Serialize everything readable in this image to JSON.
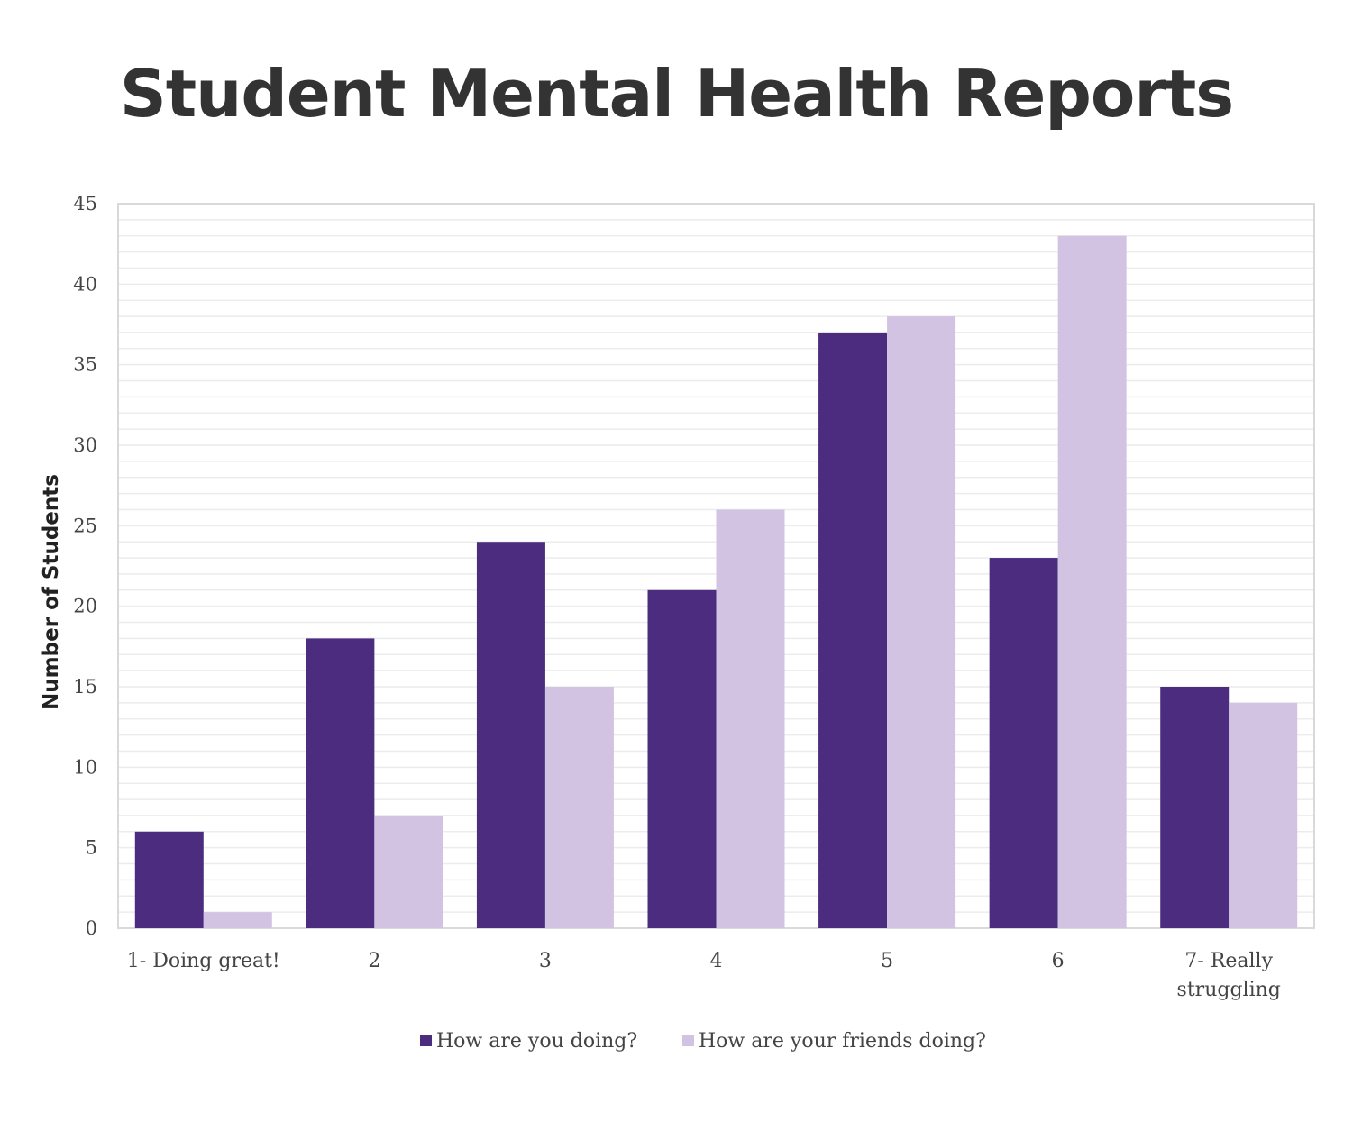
{
  "chart_data": {
    "type": "bar",
    "title": "Student Mental Health Reports",
    "xlabel": "",
    "ylabel": "Number of Students",
    "ylim": [
      0,
      45
    ],
    "yticks": [
      0,
      5,
      10,
      15,
      20,
      25,
      30,
      35,
      40,
      45
    ],
    "grid": true,
    "legend_position": "bottom",
    "categories": [
      "1- Doing great!",
      "2",
      "3",
      "4",
      "5",
      "6",
      "7- Really struggling"
    ],
    "series": [
      {
        "name": "How are you doing?",
        "color": "#4b2c7f",
        "values": [
          6,
          18,
          24,
          21,
          37,
          23,
          15
        ]
      },
      {
        "name": "How are your friends doing?",
        "color": "#d3c3e3",
        "values": [
          1,
          7,
          15,
          26,
          38,
          43,
          14
        ]
      }
    ]
  }
}
